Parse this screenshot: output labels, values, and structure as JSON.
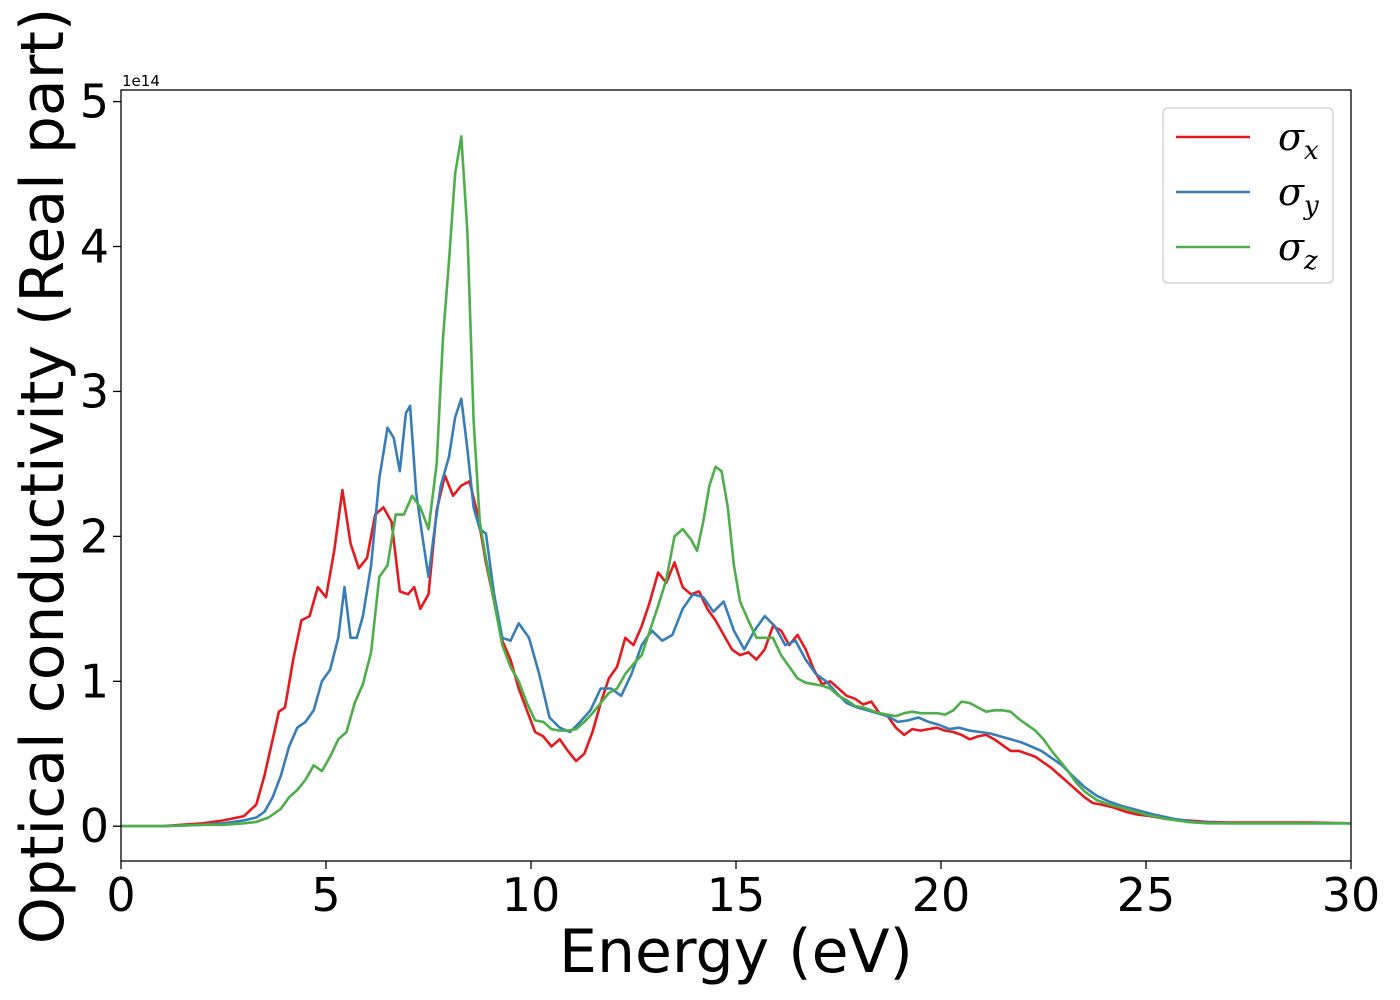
{
  "chart_data": {
    "type": "line",
    "title": "",
    "xlabel": "Energy (eV)",
    "ylabel": "Optical conductivity (Real part)",
    "y_offset_label": "1e14",
    "xlim": [
      0,
      30
    ],
    "ylim": [
      -0.24,
      5.08
    ],
    "x_ticks": [
      0,
      5,
      10,
      15,
      20,
      25,
      30
    ],
    "y_ticks": [
      0,
      1,
      2,
      3,
      4,
      5
    ],
    "grid": false,
    "legend_position": "top-right",
    "series": [
      {
        "name": "σx",
        "symbol": "σ",
        "subscript": "x",
        "color": "#e41a1c",
        "x": [
          0,
          1,
          2,
          2.5,
          3,
          3.3,
          3.5,
          3.7,
          3.85,
          4.0,
          4.2,
          4.4,
          4.6,
          4.8,
          5.0,
          5.2,
          5.4,
          5.6,
          5.8,
          6.0,
          6.2,
          6.4,
          6.6,
          6.8,
          7.0,
          7.15,
          7.3,
          7.5,
          7.7,
          7.9,
          8.1,
          8.3,
          8.5,
          8.7,
          8.9,
          9.1,
          9.3,
          9.5,
          9.7,
          9.9,
          10.1,
          10.3,
          10.5,
          10.7,
          10.9,
          11.1,
          11.3,
          11.5,
          11.7,
          11.9,
          12.1,
          12.3,
          12.5,
          12.7,
          12.9,
          13.1,
          13.3,
          13.5,
          13.7,
          13.9,
          14.1,
          14.3,
          14.5,
          14.7,
          14.9,
          15.1,
          15.3,
          15.5,
          15.7,
          15.9,
          16.1,
          16.3,
          16.5,
          16.7,
          16.9,
          17.1,
          17.3,
          17.5,
          17.7,
          17.9,
          18.1,
          18.3,
          18.5,
          18.7,
          18.9,
          19.1,
          19.3,
          19.5,
          19.7,
          19.9,
          20.1,
          20.3,
          20.5,
          20.7,
          20.9,
          21.1,
          21.3,
          21.5,
          21.7,
          21.9,
          22.1,
          22.3,
          22.5,
          22.7,
          22.9,
          23.1,
          23.3,
          23.5,
          23.7,
          23.9,
          24.2,
          24.5,
          24.8,
          25.1,
          25.5,
          26.0,
          26.5,
          27,
          28,
          29,
          30
        ],
        "y": [
          0,
          0,
          0.02,
          0.04,
          0.07,
          0.15,
          0.35,
          0.6,
          0.79,
          0.82,
          1.15,
          1.42,
          1.45,
          1.65,
          1.58,
          1.9,
          2.32,
          1.95,
          1.78,
          1.85,
          2.15,
          2.2,
          2.1,
          1.62,
          1.6,
          1.65,
          1.5,
          1.6,
          2.18,
          2.42,
          2.28,
          2.35,
          2.38,
          2.15,
          1.82,
          1.55,
          1.28,
          1.15,
          0.95,
          0.8,
          0.65,
          0.62,
          0.55,
          0.6,
          0.52,
          0.45,
          0.5,
          0.65,
          0.85,
          1.02,
          1.1,
          1.3,
          1.25,
          1.38,
          1.55,
          1.75,
          1.68,
          1.82,
          1.65,
          1.6,
          1.62,
          1.5,
          1.42,
          1.32,
          1.22,
          1.18,
          1.2,
          1.15,
          1.22,
          1.38,
          1.35,
          1.25,
          1.32,
          1.22,
          1.08,
          0.98,
          1.0,
          0.95,
          0.9,
          0.88,
          0.84,
          0.86,
          0.78,
          0.76,
          0.68,
          0.63,
          0.67,
          0.66,
          0.67,
          0.68,
          0.66,
          0.65,
          0.63,
          0.6,
          0.62,
          0.63,
          0.6,
          0.56,
          0.52,
          0.52,
          0.5,
          0.48,
          0.44,
          0.4,
          0.35,
          0.3,
          0.25,
          0.2,
          0.16,
          0.15,
          0.13,
          0.1,
          0.08,
          0.07,
          0.05,
          0.04,
          0.03,
          0.025,
          0.025,
          0.025,
          0.02
        ]
      },
      {
        "name": "σy",
        "symbol": "σ",
        "subscript": "y",
        "color": "#377eb8",
        "x": [
          0,
          1,
          2,
          2.5,
          3,
          3.3,
          3.5,
          3.7,
          3.9,
          4.1,
          4.3,
          4.5,
          4.7,
          4.9,
          5.1,
          5.3,
          5.45,
          5.6,
          5.75,
          5.9,
          6.1,
          6.3,
          6.5,
          6.65,
          6.8,
          6.95,
          7.05,
          7.2,
          7.35,
          7.5,
          7.65,
          7.8,
          8.0,
          8.15,
          8.3,
          8.45,
          8.6,
          8.75,
          8.9,
          9.1,
          9.3,
          9.5,
          9.7,
          9.95,
          10.2,
          10.45,
          10.7,
          10.95,
          11.2,
          11.45,
          11.7,
          11.95,
          12.2,
          12.45,
          12.7,
          12.95,
          13.2,
          13.45,
          13.7,
          13.95,
          14.2,
          14.45,
          14.7,
          14.95,
          15.2,
          15.45,
          15.7,
          15.95,
          16.2,
          16.45,
          16.7,
          16.95,
          17.2,
          17.45,
          17.7,
          17.95,
          18.2,
          18.45,
          18.7,
          18.95,
          19.2,
          19.45,
          19.7,
          19.95,
          20.2,
          20.45,
          20.7,
          20.95,
          21.2,
          21.45,
          21.7,
          21.95,
          22.2,
          22.45,
          22.7,
          22.95,
          23.2,
          23.5,
          23.8,
          24.1,
          24.4,
          24.8,
          25.2,
          25.7,
          26.2,
          27,
          28,
          29,
          30
        ],
        "y": [
          0,
          0,
          0.01,
          0.02,
          0.04,
          0.06,
          0.1,
          0.2,
          0.35,
          0.55,
          0.68,
          0.72,
          0.8,
          1.0,
          1.08,
          1.3,
          1.65,
          1.3,
          1.3,
          1.45,
          1.8,
          2.4,
          2.75,
          2.68,
          2.45,
          2.85,
          2.9,
          2.3,
          2.0,
          1.72,
          2.05,
          2.35,
          2.55,
          2.82,
          2.95,
          2.6,
          2.2,
          2.05,
          2.02,
          1.6,
          1.3,
          1.28,
          1.4,
          1.3,
          1.05,
          0.75,
          0.68,
          0.65,
          0.72,
          0.8,
          0.95,
          0.95,
          0.9,
          1.05,
          1.25,
          1.35,
          1.28,
          1.32,
          1.5,
          1.6,
          1.58,
          1.48,
          1.55,
          1.35,
          1.22,
          1.35,
          1.45,
          1.38,
          1.25,
          1.28,
          1.15,
          1.05,
          1.0,
          0.92,
          0.85,
          0.82,
          0.8,
          0.78,
          0.76,
          0.72,
          0.73,
          0.75,
          0.72,
          0.7,
          0.67,
          0.68,
          0.66,
          0.65,
          0.64,
          0.62,
          0.6,
          0.58,
          0.55,
          0.52,
          0.47,
          0.42,
          0.35,
          0.27,
          0.21,
          0.17,
          0.14,
          0.11,
          0.08,
          0.05,
          0.03,
          0.02,
          0.02,
          0.02,
          0.02
        ]
      },
      {
        "name": "σz",
        "symbol": "σ",
        "subscript": "z",
        "color": "#4daf4a",
        "x": [
          0,
          1,
          2,
          2.5,
          3,
          3.3,
          3.6,
          3.9,
          4.1,
          4.3,
          4.5,
          4.7,
          4.9,
          5.1,
          5.3,
          5.5,
          5.7,
          5.9,
          6.1,
          6.3,
          6.5,
          6.7,
          6.9,
          7.1,
          7.3,
          7.5,
          7.7,
          7.85,
          8.0,
          8.15,
          8.3,
          8.45,
          8.6,
          8.75,
          8.9,
          9.1,
          9.3,
          9.5,
          9.7,
          9.9,
          10.1,
          10.3,
          10.5,
          10.7,
          10.9,
          11.1,
          11.3,
          11.5,
          11.7,
          11.9,
          12.1,
          12.3,
          12.5,
          12.7,
          12.9,
          13.1,
          13.3,
          13.5,
          13.7,
          13.9,
          14.05,
          14.2,
          14.35,
          14.5,
          14.65,
          14.8,
          14.95,
          15.1,
          15.3,
          15.5,
          15.7,
          15.9,
          16.1,
          16.3,
          16.5,
          16.7,
          16.9,
          17.1,
          17.3,
          17.5,
          17.7,
          17.9,
          18.1,
          18.3,
          18.5,
          18.7,
          18.9,
          19.1,
          19.3,
          19.5,
          19.7,
          19.9,
          20.1,
          20.3,
          20.5,
          20.7,
          20.9,
          21.1,
          21.3,
          21.5,
          21.7,
          21.9,
          22.1,
          22.3,
          22.5,
          22.7,
          22.9,
          23.1,
          23.3,
          23.5,
          23.8,
          24.1,
          24.5,
          25.0,
          25.5,
          26.0,
          26.5,
          27,
          28,
          29,
          30
        ],
        "y": [
          0,
          0,
          0.01,
          0.01,
          0.02,
          0.03,
          0.06,
          0.12,
          0.2,
          0.25,
          0.32,
          0.42,
          0.38,
          0.48,
          0.6,
          0.65,
          0.85,
          0.98,
          1.2,
          1.72,
          1.8,
          2.15,
          2.15,
          2.28,
          2.2,
          2.05,
          2.5,
          3.35,
          3.9,
          4.5,
          4.76,
          4.1,
          2.8,
          2.1,
          1.85,
          1.55,
          1.25,
          1.1,
          1.0,
          0.85,
          0.73,
          0.72,
          0.67,
          0.66,
          0.66,
          0.67,
          0.72,
          0.78,
          0.85,
          0.92,
          0.95,
          1.05,
          1.12,
          1.18,
          1.35,
          1.52,
          1.7,
          2.0,
          2.05,
          1.98,
          1.9,
          2.1,
          2.35,
          2.48,
          2.45,
          2.2,
          1.8,
          1.55,
          1.42,
          1.3,
          1.3,
          1.3,
          1.18,
          1.1,
          1.02,
          0.99,
          0.98,
          0.97,
          0.95,
          0.9,
          0.87,
          0.83,
          0.82,
          0.8,
          0.78,
          0.77,
          0.76,
          0.78,
          0.79,
          0.78,
          0.78,
          0.78,
          0.77,
          0.8,
          0.86,
          0.85,
          0.82,
          0.79,
          0.8,
          0.8,
          0.79,
          0.74,
          0.7,
          0.66,
          0.6,
          0.52,
          0.45,
          0.38,
          0.3,
          0.24,
          0.18,
          0.15,
          0.12,
          0.08,
          0.05,
          0.03,
          0.02,
          0.02,
          0.02,
          0.02,
          0.02
        ]
      }
    ]
  }
}
